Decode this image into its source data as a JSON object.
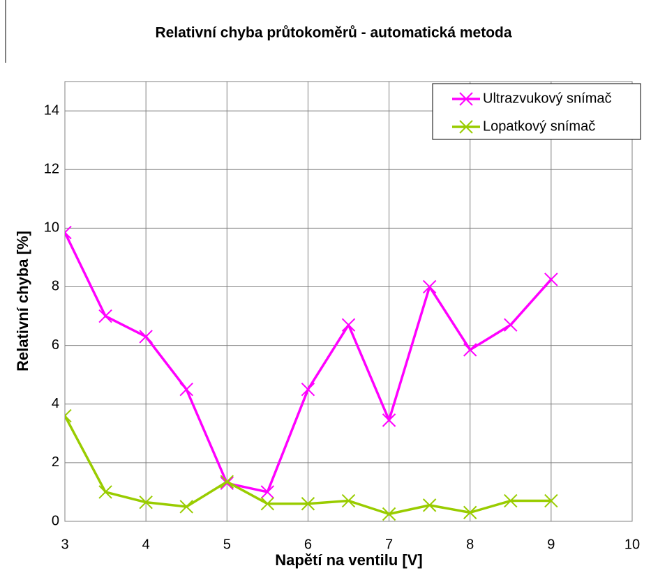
{
  "chart_data": {
    "type": "line",
    "title": "Relativní chyba průtokoměrů - automatická metoda",
    "x_label": "Napětí na ventilu [V]",
    "y_label": "Relativní chyba [%]",
    "x": [
      3,
      3.5,
      4,
      4.5,
      5,
      5.5,
      6,
      6.5,
      7,
      7.5,
      8,
      8.5,
      9
    ],
    "series": [
      {
        "name": "Ultrazvukový snímač",
        "color": "#ff00ff",
        "values": [
          9.85,
          7.0,
          6.3,
          4.5,
          1.3,
          1.0,
          4.5,
          6.7,
          3.45,
          8.0,
          5.85,
          6.7,
          8.25
        ]
      },
      {
        "name": "Lopatkový snímač",
        "color": "#99cc00",
        "values": [
          3.6,
          1.0,
          0.65,
          0.5,
          1.35,
          0.6,
          0.6,
          0.7,
          0.25,
          0.55,
          0.3,
          0.7,
          0.7
        ]
      }
    ],
    "xlim": [
      3,
      10
    ],
    "xticks": [
      3,
      4,
      5,
      6,
      7,
      8,
      9,
      10
    ],
    "ylim": [
      0,
      15
    ],
    "yticks": [
      0,
      2,
      4,
      6,
      8,
      10,
      12,
      14
    ],
    "grid": true,
    "legend": "top-right"
  }
}
